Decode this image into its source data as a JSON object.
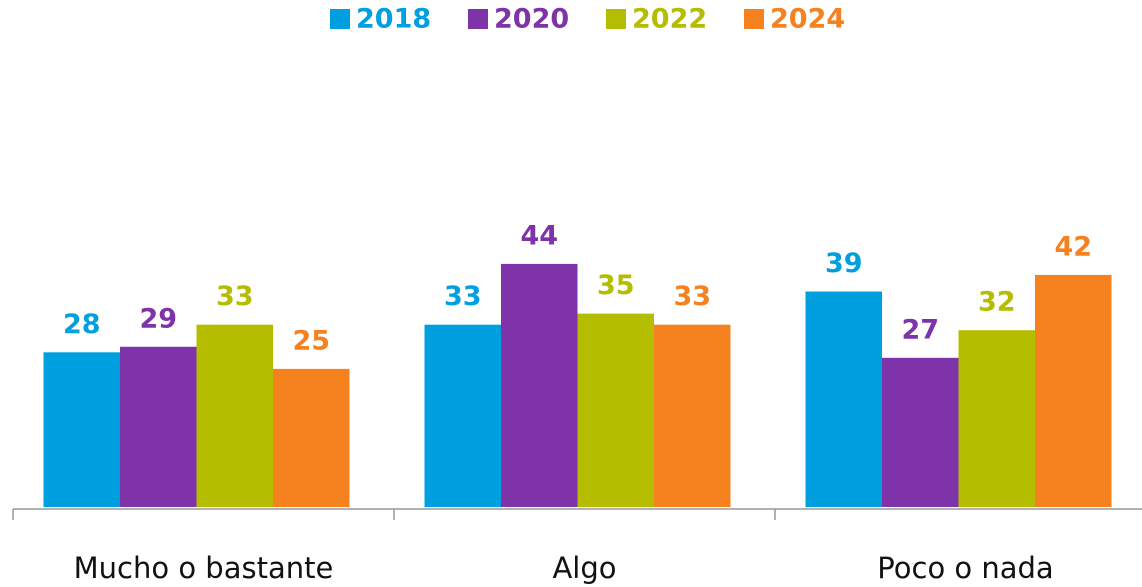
{
  "chart_data": {
    "type": "bar",
    "categories": [
      "Mucho o bastante",
      "Algo",
      "Poco o nada"
    ],
    "series": [
      {
        "name": "2018",
        "color": "#009fe0",
        "values": [
          28,
          33,
          39
        ]
      },
      {
        "name": "2020",
        "color": "#7f33a8",
        "values": [
          29,
          44,
          27
        ]
      },
      {
        "name": "2022",
        "color": "#b5bd00",
        "values": [
          33,
          35,
          32
        ]
      },
      {
        "name": "2024",
        "color": "#f5821f",
        "values": [
          25,
          33,
          42
        ]
      }
    ],
    "ylim": [
      0,
      80
    ],
    "legend": "top"
  }
}
